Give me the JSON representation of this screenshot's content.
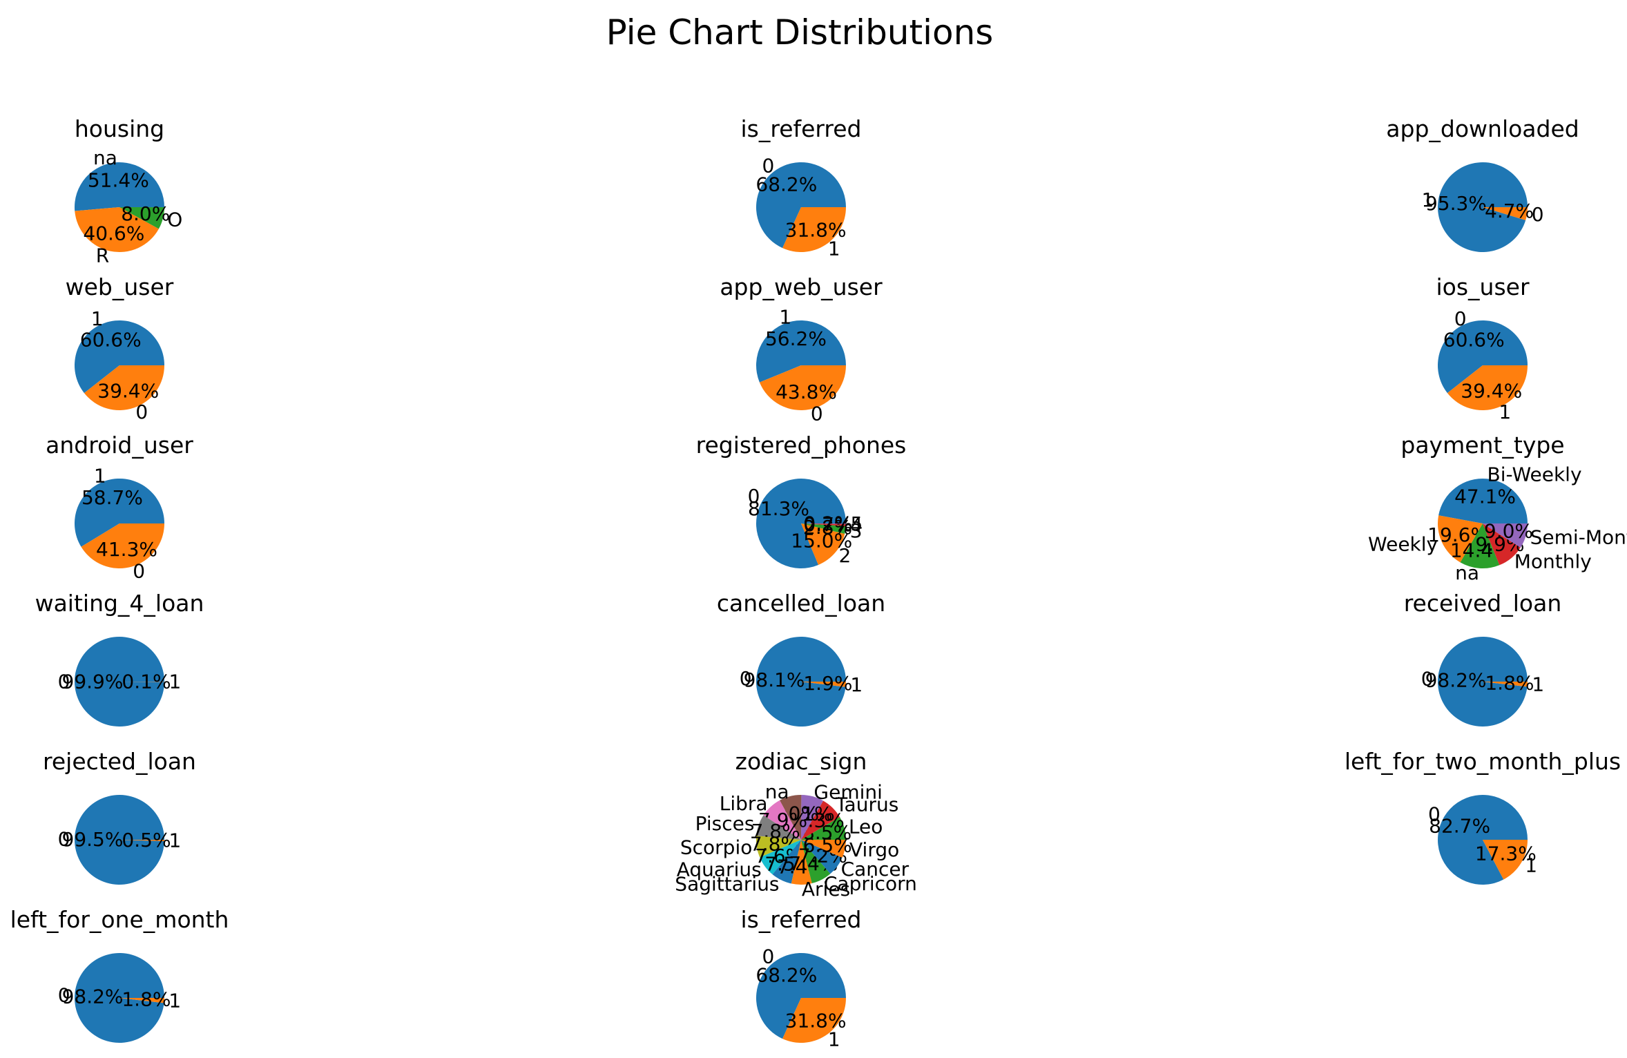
{
  "figure": {
    "title": "Pie Chart Distributions"
  },
  "colors": [
    "#1f77b4",
    "#ff7f0e",
    "#2ca02c",
    "#d62728",
    "#9467bd",
    "#8c564b",
    "#e377c2",
    "#7f7f7f",
    "#bcbd22",
    "#17becf"
  ],
  "chart_data": [
    {
      "type": "pie",
      "title": "housing",
      "labels": [
        "na",
        "R",
        "O"
      ],
      "values": [
        51.3,
        40.6,
        8.0
      ]
    },
    {
      "type": "pie",
      "title": "is_referred",
      "labels": [
        "0",
        "1"
      ],
      "values": [
        68.2,
        31.8
      ]
    },
    {
      "type": "pie",
      "title": "app_downloaded",
      "labels": [
        "1",
        "0"
      ],
      "values": [
        95.3,
        4.7
      ]
    },
    {
      "type": "pie",
      "title": "web_user",
      "labels": [
        "1",
        "0"
      ],
      "values": [
        60.6,
        39.4
      ]
    },
    {
      "type": "pie",
      "title": "app_web_user",
      "labels": [
        "1",
        "0"
      ],
      "values": [
        56.2,
        43.8
      ]
    },
    {
      "type": "pie",
      "title": "ios_user",
      "labels": [
        "0",
        "1"
      ],
      "values": [
        60.6,
        39.4
      ]
    },
    {
      "type": "pie",
      "title": "android_user",
      "labels": [
        "1",
        "0"
      ],
      "values": [
        58.7,
        41.3
      ]
    },
    {
      "type": "pie",
      "title": "registered_phones",
      "labels": [
        "0",
        "2",
        "3",
        "4",
        "5"
      ],
      "values": [
        81.3,
        15.0,
        2.8,
        0.7,
        0.2
      ]
    },
    {
      "type": "pie",
      "title": "payment_type",
      "labels": [
        "Bi-Weekly",
        "Weekly",
        "na",
        "Monthly",
        "Semi-Monthly"
      ],
      "values": [
        47.1,
        19.6,
        14.4,
        9.9,
        9.0
      ]
    },
    {
      "type": "pie",
      "title": "waiting_4_loan",
      "labels": [
        "0",
        "1"
      ],
      "values": [
        99.9,
        0.1
      ]
    },
    {
      "type": "pie",
      "title": "cancelled_loan",
      "labels": [
        "0",
        "1"
      ],
      "values": [
        98.1,
        1.9
      ]
    },
    {
      "type": "pie",
      "title": "received_loan",
      "labels": [
        "0",
        "1"
      ],
      "values": [
        98.2,
        1.8
      ]
    },
    {
      "type": "pie",
      "title": "rejected_loan",
      "labels": [
        "0",
        "1"
      ],
      "values": [
        99.5,
        0.5
      ]
    },
    {
      "type": "pie",
      "title": "zodiac_sign",
      "labels": [
        "Leo",
        "Taurus",
        "Gemini",
        "na",
        "Libra",
        "Pisces",
        "Scorpio",
        "Aquarius",
        "Sagittarius",
        "Aries",
        "Capricorn",
        "Cancer",
        "Virgo"
      ],
      "values": [
        8.5,
        8.3,
        8.1,
        8.0,
        7.9,
        7.8,
        7.8,
        7.6,
        7.5,
        7.4,
        7.4,
        7.2,
        6.5
      ],
      "colors": [
        "#2ca02c",
        "#d62728",
        "#9467bd",
        "#8c564b",
        "#e377c2",
        "#7f7f7f",
        "#bcbd22",
        "#17becf",
        "#1f77b4",
        "#ff7f0e",
        "#2ca02c",
        "#1f77b4",
        "#ff7f0e"
      ]
    },
    {
      "type": "pie",
      "title": "left_for_two_month_plus",
      "labels": [
        "0",
        "1"
      ],
      "values": [
        82.7,
        17.3
      ]
    },
    {
      "type": "pie",
      "title": "left_for_one_month",
      "labels": [
        "0",
        "1"
      ],
      "values": [
        98.2,
        1.8
      ]
    },
    {
      "type": "pie",
      "title": "is_referred",
      "labels": [
        "0",
        "1"
      ],
      "values": [
        68.2,
        31.8
      ]
    }
  ]
}
